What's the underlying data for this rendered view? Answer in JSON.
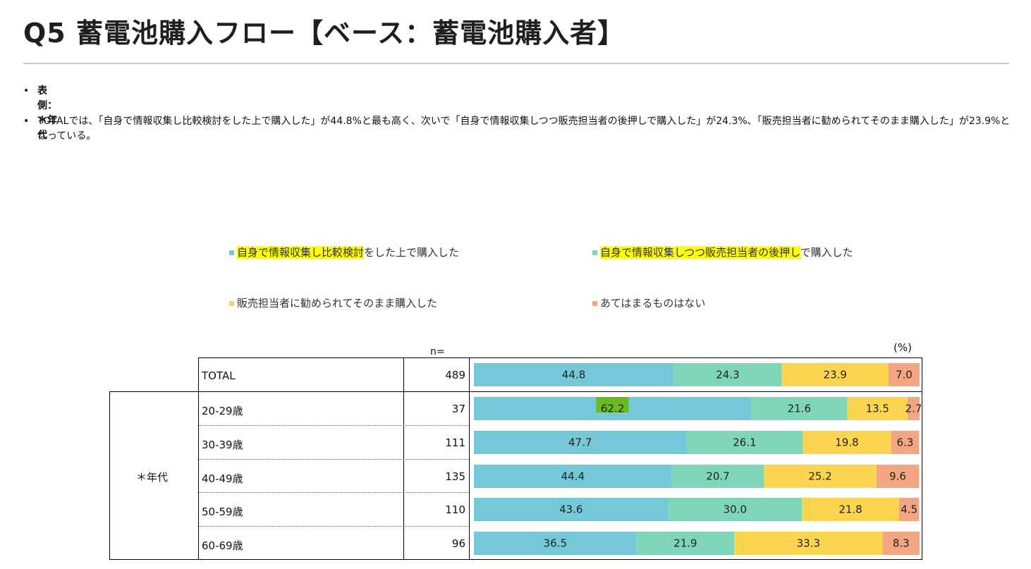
{
  "page": {
    "title": "Q5 蓄電池購入フロー【ベース：蓄電池購入者】",
    "bullet_glyph": "•",
    "notes": [
      "表側：＊年代",
      "TOTALでは、「自身で情報収集し比較検討をした上で購入した」が44.8%と最も高く、次いで「自身で情報収集しつつ販売担当者の後押しで購入した」が24.3%、「販売担当者に勧められてそのまま購入した」が23.9%となっている。"
    ]
  },
  "legend": [
    {
      "highlight": "自身で情報収集し比較検討",
      "rest": "をした上で購入した",
      "color": "#74c8d8"
    },
    {
      "highlight": "自身で情報収集しつつ販売担当者の後押し",
      "rest": "で購入した",
      "color": "#7fd6b7"
    },
    {
      "highlight": "",
      "rest": "販売担当者に勧められてそのまま購入した",
      "color": "#fcd550"
    },
    {
      "highlight": "",
      "rest": "あてはまるものはない",
      "color": "#f4a582"
    }
  ],
  "table": {
    "n_header": "n=",
    "unit_label": "(%)",
    "group_label": "＊年代"
  },
  "chart_data": {
    "type": "bar",
    "orientation": "horizontal",
    "stacked": true,
    "percent": true,
    "xlim": [
      0,
      100
    ],
    "categories": [
      "TOTAL",
      "20-29歳",
      "30-39歳",
      "40-49歳",
      "50-59歳",
      "60-69歳"
    ],
    "n": [
      489,
      37,
      111,
      135,
      110,
      96
    ],
    "series": [
      {
        "name": "自身で情報収集し比較検討をした上で購入した",
        "color": "#74c8d8",
        "values": [
          "44.8",
          "62.2",
          "47.7",
          "44.4",
          "43.6",
          "36.5"
        ]
      },
      {
        "name": "自身で情報収集しつつ販売担当者の後押しで購入した",
        "color": "#7fd6b7",
        "values": [
          "24.3",
          "21.6",
          "26.1",
          "20.7",
          "30.0",
          "21.9"
        ]
      },
      {
        "name": "販売担当者に勧められてそのまま購入した",
        "color": "#fcd550",
        "values": [
          "23.9",
          "13.5",
          "19.8",
          "25.2",
          "21.8",
          "33.3"
        ]
      },
      {
        "name": "あてはまるものはない",
        "color": "#f4a582",
        "values": [
          "7.0",
          "2.7",
          "6.3",
          "9.6",
          "4.5",
          "8.3"
        ]
      }
    ],
    "highlighted_label": {
      "category": "20-29歳",
      "series": 0,
      "color": "#6aba1f"
    },
    "grid": false
  }
}
